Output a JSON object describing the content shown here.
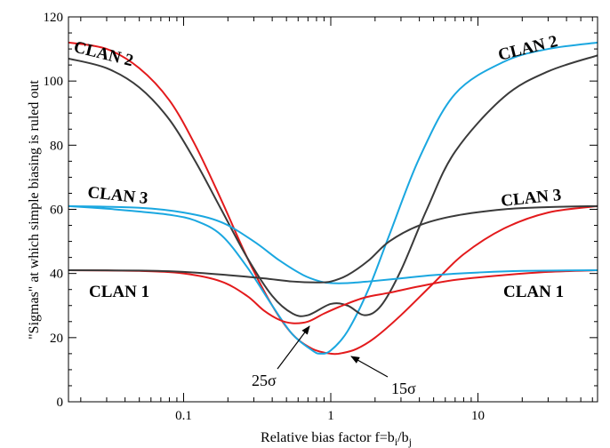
{
  "chart_data": {
    "type": "line",
    "title": "",
    "xlabel": "Relative bias factor f=b",
    "xlabel_sub1": "i",
    "xlabel_sep": "/b",
    "xlabel_sub2": "j",
    "ylabel": "\"Sigmas\" at which simple biasing is ruled out",
    "xscale": "log",
    "xlim": [
      0.0165,
      65
    ],
    "ylim": [
      0,
      120
    ],
    "xticks": [
      {
        "value": 0.1,
        "label": "0.1"
      },
      {
        "value": 1,
        "label": "1"
      },
      {
        "value": 10,
        "label": "10"
      }
    ],
    "yticks": [
      {
        "value": 0,
        "label": "0"
      },
      {
        "value": 20,
        "label": "20"
      },
      {
        "value": 40,
        "label": "40"
      },
      {
        "value": 60,
        "label": "60"
      },
      {
        "value": 80,
        "label": "80"
      },
      {
        "value": 100,
        "label": "100"
      },
      {
        "value": 120,
        "label": "120"
      }
    ],
    "grid": false,
    "legend": "none",
    "colors": {
      "red": "#e31a1c",
      "blue": "#1aa7e0",
      "dark": "#3a3a3a"
    },
    "series": [
      {
        "color": "red",
        "x": [
          0.0165,
          0.03,
          0.05,
          0.08,
          0.12,
          0.18,
          0.27,
          0.4,
          0.55,
          0.75,
          1.0,
          1.2,
          1.5,
          2.0,
          3.0,
          5.0,
          8.0,
          15,
          30,
          65
        ],
        "y": [
          112,
          110,
          104,
          94,
          80,
          63,
          45,
          30,
          21,
          16.5,
          15,
          15.2,
          16.5,
          20,
          27,
          37,
          46,
          54,
          59,
          61
        ]
      },
      {
        "color": "blue",
        "x": [
          0.0165,
          0.03,
          0.05,
          0.08,
          0.12,
          0.18,
          0.27,
          0.4,
          0.55,
          0.75,
          0.85,
          1.0,
          1.3,
          1.8,
          2.5,
          4.0,
          7.0,
          15,
          30,
          65
        ],
        "y": [
          61,
          60.2,
          59.3,
          58.3,
          56.5,
          52,
          42,
          30,
          21,
          16,
          15,
          16,
          22,
          35,
          52,
          76,
          96,
          106,
          110,
          112
        ]
      },
      {
        "color": "dark",
        "x": [
          0.0165,
          0.03,
          0.05,
          0.08,
          0.12,
          0.18,
          0.27,
          0.4,
          0.55,
          0.7,
          1.0,
          1.3,
          1.7,
          2.2,
          3.0,
          4.5,
          7.0,
          15,
          30,
          65
        ],
        "y": [
          107,
          104,
          98,
          88,
          75,
          60,
          45,
          33,
          27.5,
          27,
          30.5,
          30,
          27,
          30,
          41,
          60,
          78,
          95,
          103,
          108
        ]
      },
      {
        "color": "red",
        "x": [
          0.0165,
          0.05,
          0.1,
          0.18,
          0.27,
          0.35,
          0.45,
          0.55,
          0.7,
          0.9,
          1.2,
          1.7,
          2.5,
          4.0,
          7.0,
          15,
          30,
          65
        ],
        "y": [
          41,
          40.8,
          40,
          37.5,
          33,
          28.5,
          25.5,
          24.5,
          25,
          27.5,
          30,
          32.5,
          34,
          36,
          38,
          39.5,
          40.5,
          41
        ]
      },
      {
        "color": "blue",
        "x": [
          0.0165,
          0.05,
          0.1,
          0.18,
          0.3,
          0.45,
          0.65,
          0.85,
          1.0,
          1.3,
          1.8,
          3.0,
          5.0,
          10,
          20,
          65
        ],
        "y": [
          61,
          60.5,
          59,
          56,
          50,
          44,
          39.5,
          37.5,
          37,
          37,
          37.5,
          38.5,
          39.5,
          40.3,
          40.8,
          41
        ]
      },
      {
        "color": "dark",
        "x": [
          0.0165,
          0.05,
          0.1,
          0.2,
          0.35,
          0.55,
          0.8,
          1.0,
          1.3,
          1.8,
          2.5,
          4.0,
          7.0,
          15,
          30,
          65
        ],
        "y": [
          41,
          40.9,
          40.5,
          39.5,
          38.5,
          37.5,
          37.2,
          37.5,
          39.5,
          44,
          50,
          55,
          58,
          60,
          60.7,
          61
        ]
      }
    ],
    "annotations": {
      "clan2_left": "CLAN 2",
      "clan2_right": "CLAN 2",
      "clan3_left": "CLAN 3",
      "clan3_right": "CLAN 3",
      "clan1_left": "CLAN 1",
      "clan1_right": "CLAN 1",
      "sigma25": "25σ",
      "sigma15": "15σ"
    }
  }
}
